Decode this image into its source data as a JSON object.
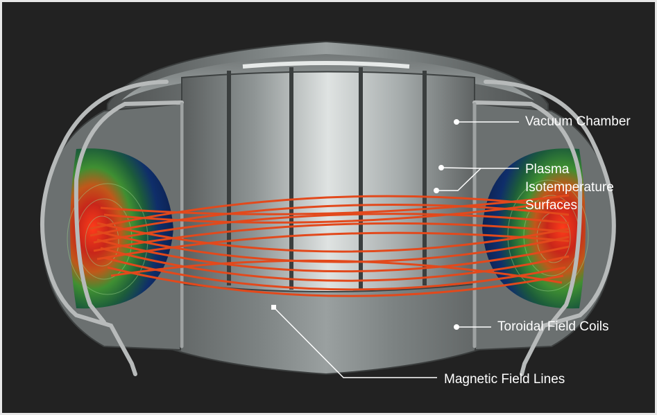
{
  "labels": {
    "vacuum_chamber": "Vacuum Chamber",
    "plasma": [
      "Plasma",
      "Isotemperature",
      "Surfaces"
    ],
    "toroidal_field_coils": "Toroidal Field Coils",
    "magnetic_field_lines": "Magnetic Field Lines"
  },
  "colors": {
    "background": "#222222",
    "vessel": "#8a8e8e",
    "coil": "#b6b8b8",
    "plasma_core": "#d0321a",
    "plasma_mid": "#4a9a3a",
    "plasma_edge": "#0e2a6e",
    "field_line": "#e2491c",
    "callout_line": "#ffffff"
  }
}
